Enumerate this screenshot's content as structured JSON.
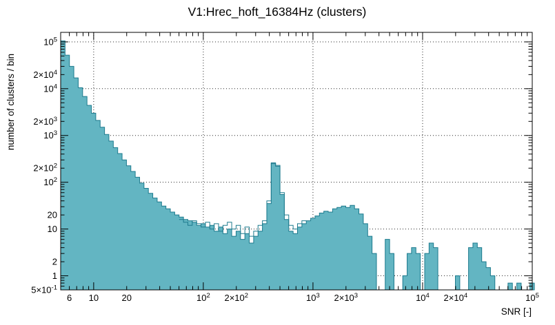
{
  "title": "V1:Hrec_hoft_16384Hz (clusters)",
  "colors": {
    "hist_fill": "#63b5c2",
    "hist_stroke": "#1c7a8d",
    "frame": "#000000",
    "grid": "#000000"
  },
  "axes": {
    "x": {
      "title": "SNR [-]",
      "scale": "log",
      "min": 5,
      "max": 100000,
      "grid": [
        10,
        100,
        1000,
        10000,
        100000
      ],
      "labeled_ticks": [
        {
          "v": 6,
          "label": "6"
        },
        {
          "v": 10,
          "label": "10"
        },
        {
          "v": 20,
          "label": "20"
        },
        {
          "v": 100,
          "label": "10^2"
        },
        {
          "v": 200,
          "label": "2×10^2"
        },
        {
          "v": 1000,
          "label": "10^3"
        },
        {
          "v": 2000,
          "label": "2×10^3"
        },
        {
          "v": 10000,
          "label": "10^4"
        },
        {
          "v": 20000,
          "label": "2×10^4"
        },
        {
          "v": 100000,
          "label": "10^5"
        }
      ]
    },
    "y": {
      "title": "number of clusters / bin",
      "scale": "log",
      "min": 0.5,
      "max": 160000,
      "grid": [
        1,
        10,
        100,
        1000,
        10000,
        100000
      ],
      "labeled_ticks": [
        {
          "v": 100000,
          "label": "10^5"
        },
        {
          "v": 20000,
          "label": "2×10^4"
        },
        {
          "v": 10000,
          "label": "10^4"
        },
        {
          "v": 2000,
          "label": "2×10^3"
        },
        {
          "v": 1000,
          "label": "10^3"
        },
        {
          "v": 200,
          "label": "2×10^2"
        },
        {
          "v": 100,
          "label": "10^2"
        },
        {
          "v": 20,
          "label": "20"
        },
        {
          "v": 10,
          "label": "10"
        },
        {
          "v": 2,
          "label": "2"
        },
        {
          "v": 1,
          "label": "1"
        },
        {
          "v": 0.5,
          "label": "5×10^-1"
        }
      ]
    }
  },
  "chart_data": {
    "type": "bar",
    "subtype": "log-log step histogram",
    "title": "V1:Hrec_hoft_16384Hz (clusters)",
    "xlabel": "SNR [-]",
    "ylabel": "number of clusters / bin",
    "xscale": "log",
    "yscale": "log",
    "xlim": [
      5,
      100000
    ],
    "ylim": [
      0.5,
      160000
    ],
    "grid": "dotted, at powers of ten on both axes",
    "legend": "none",
    "bins": {
      "log10_start": 0.69897,
      "log10_width": 0.04
    },
    "series": [
      {
        "name": "clusters (filled histogram)",
        "style": "filled-steps",
        "counts": [
          105000,
          52000,
          30000,
          17000,
          10500,
          6800,
          4400,
          3000,
          2100,
          1500,
          1050,
          760,
          550,
          410,
          300,
          225,
          170,
          128,
          96,
          74,
          58,
          46,
          38,
          31,
          27,
          23,
          20,
          18,
          16,
          15,
          14,
          12,
          13,
          11,
          12,
          9,
          11,
          8,
          10,
          7,
          9,
          6,
          8,
          5,
          7,
          9,
          13,
          35,
          250,
          220,
          55,
          16,
          9,
          8,
          11,
          13,
          15,
          17,
          19,
          22,
          24,
          23,
          27,
          29,
          31,
          29,
          32,
          27,
          21,
          13,
          7,
          3,
          0,
          0,
          6,
          3,
          0,
          0,
          1,
          3,
          4,
          3,
          0,
          3,
          5,
          4,
          0,
          0,
          0,
          0,
          1,
          0,
          0,
          4,
          5,
          4,
          2,
          1.5,
          1,
          0,
          0,
          0,
          0.7,
          0,
          0.7,
          0,
          0,
          0.7
        ]
      },
      {
        "name": "clusters (open overlay histogram)",
        "style": "open-steps",
        "start_bin": 27,
        "counts": [
          16,
          14,
          12,
          15,
          13,
          11,
          14,
          10,
          13,
          9,
          12,
          14,
          10,
          12,
          8,
          11,
          7,
          9,
          12,
          15,
          40,
          260,
          230,
          60,
          20,
          12,
          10,
          13,
          15
        ]
      }
    ]
  }
}
